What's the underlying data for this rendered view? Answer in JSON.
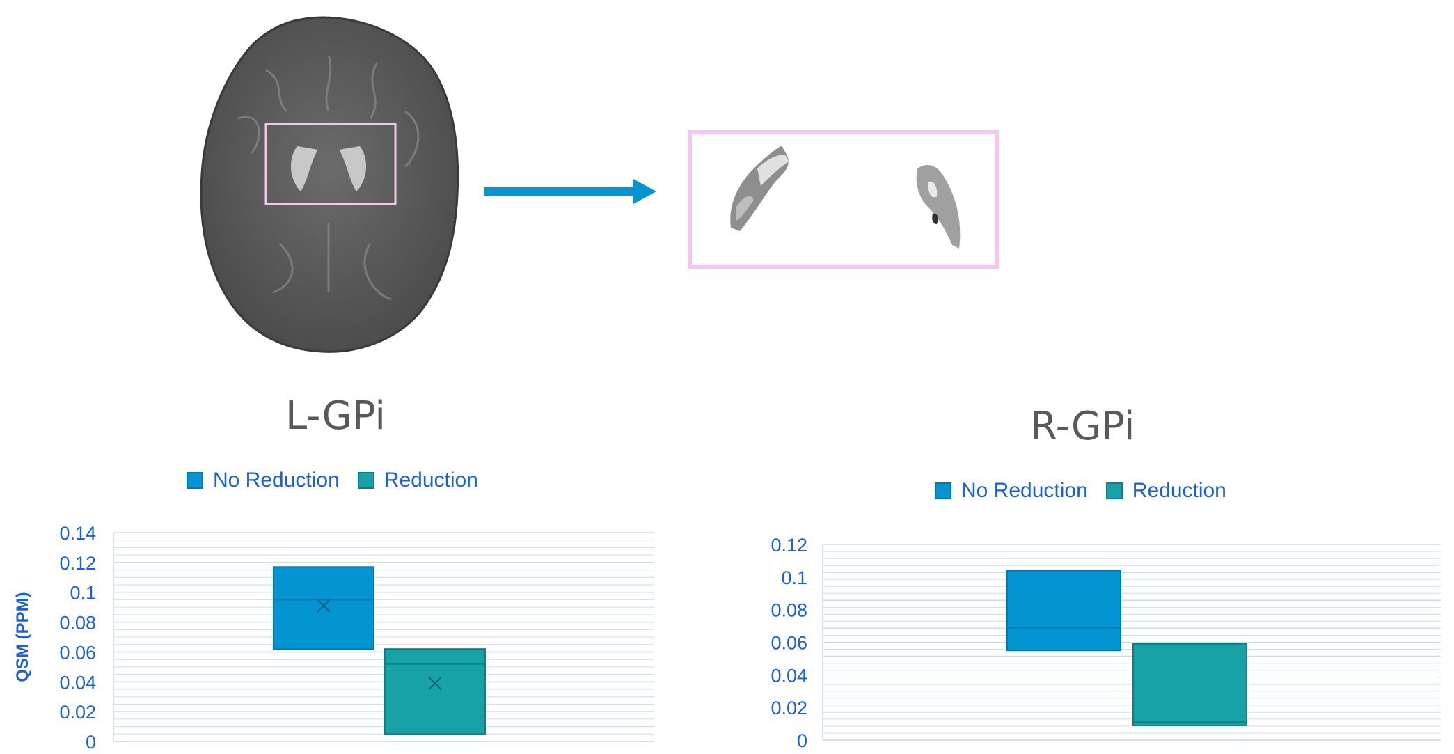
{
  "colors": {
    "no_reduction": "#0494d2",
    "reduction": "#17a2a8",
    "roi_box": "#f5c6ef",
    "arrow": "#0a93d1",
    "grid": "#c9dcf0",
    "axis_text": "#1a5fd6"
  },
  "figure": {
    "brain_image": "axial-brain-mri-qsm",
    "roi_image": "segmented-globus-pallidus-regions",
    "arrow_icon": "right-arrow-icon"
  },
  "chart_data": [
    {
      "type": "box",
      "title": "L-GPi",
      "ylabel": "QSM (PPM)",
      "ylim": [
        0,
        0.14
      ],
      "yticks": [
        "0",
        "0.02",
        "0.04",
        "0.06",
        "0.08",
        "0.1",
        "0.12",
        "0.14"
      ],
      "legend": [
        "No Reduction",
        "Reduction"
      ],
      "legend_position": "top",
      "grid": true,
      "series": [
        {
          "name": "No Reduction",
          "q1": 0.062,
          "median": 0.095,
          "q3": 0.117,
          "mean": 0.091
        },
        {
          "name": "Reduction",
          "q1": 0.005,
          "median": 0.052,
          "q3": 0.062,
          "mean": 0.039
        }
      ]
    },
    {
      "type": "box",
      "title": "R-GPi",
      "ylabel": "",
      "ylim": [
        0,
        0.12
      ],
      "yticks": [
        "0",
        "0.02",
        "0.04",
        "0.06",
        "0.08",
        "0.1",
        "0.12"
      ],
      "legend": [
        "No Reduction",
        "Reduction"
      ],
      "legend_position": "top",
      "grid": true,
      "series": [
        {
          "name": "No Reduction",
          "q1": 0.055,
          "median": 0.069,
          "q3": 0.104
        },
        {
          "name": "Reduction",
          "q1": 0.009,
          "median": 0.011,
          "q3": 0.059
        }
      ]
    }
  ]
}
